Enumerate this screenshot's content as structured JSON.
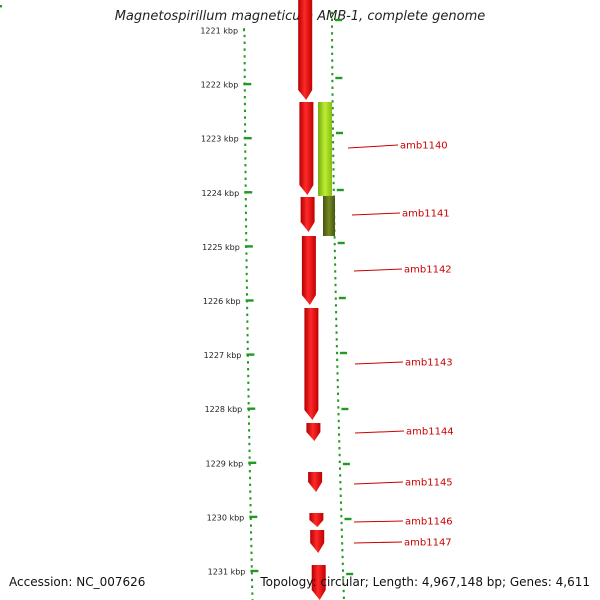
{
  "title": "Magnetospirillum magneticum AMB-1, complete genome",
  "accession": "Accession: NC_007626",
  "topology": "Topology: circular; Length: 4,967,148 bp; Genes: 4,611",
  "scale_unit": "kbp",
  "scale_ticks": [
    "1221 kbp",
    "1222 kbp",
    "1223 kbp",
    "1224 kbp",
    "1225 kbp",
    "1226 kbp",
    "1227 kbp",
    "1228 kbp",
    "1229 kbp",
    "1230 kbp",
    "1231 kbp"
  ],
  "gene_labels": [
    "amb1140",
    "amb1141",
    "amb1142",
    "amb1143",
    "amb1144",
    "amb1145",
    "amb1146",
    "amb1147"
  ],
  "colors": {
    "gene_forward": "#ee1111",
    "gene_feature_light": "#99dd22",
    "gene_feature_dark": "#557711",
    "backbone": "#888888",
    "tick_green": "#229922",
    "label_red": "#cc0000"
  }
}
